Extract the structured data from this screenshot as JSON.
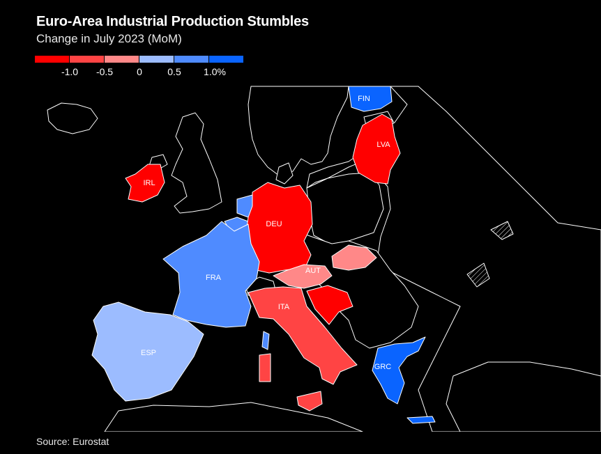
{
  "title": "Euro-Area Industrial Production Stumbles",
  "subtitle": "Change in July 2023 (MoM)",
  "source": "Source: Eurostat",
  "legend": {
    "colors": [
      "#ff0000",
      "#ff4444",
      "#ff8888",
      "#9cbcff",
      "#4f8bff",
      "#0a64ff"
    ],
    "ticks": [
      "-1.0",
      "-0.5",
      "0",
      "0.5",
      "1.0%"
    ]
  },
  "colors": {
    "background": "#000000",
    "non_euro_fill": "#000000",
    "border": "#ffffff"
  },
  "countries": [
    {
      "code": "FIN",
      "color": "#0a64ff"
    },
    {
      "code": "LVA",
      "color": "#ff0000"
    },
    {
      "code": "IRL",
      "color": "#ff0000"
    },
    {
      "code": "DEU",
      "color": "#ff0000"
    },
    {
      "code": "AUT",
      "color": "#ff8888"
    },
    {
      "code": "FRA",
      "color": "#4f8bff"
    },
    {
      "code": "ITA",
      "color": "#ff4444"
    },
    {
      "code": "ESP",
      "color": "#9cbcff"
    },
    {
      "code": "GRC",
      "color": "#0a64ff"
    }
  ]
}
